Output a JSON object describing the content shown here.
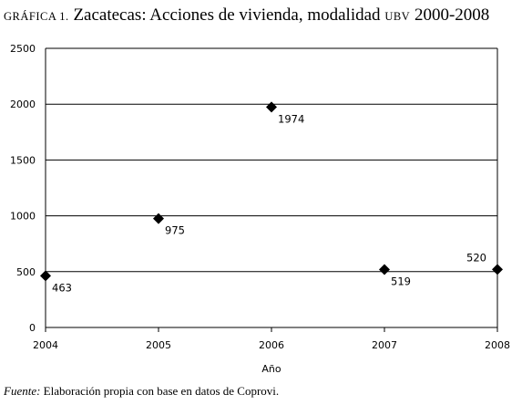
{
  "title": {
    "prefix": "GRÁFICA 1.",
    "main": "Zacatecas: Acciones de vivienda, modalidad",
    "abbr": "UBV",
    "years": "2000-2008"
  },
  "source": {
    "label": "Fuente:",
    "text": "Elaboración propia con base en datos de Coprovi."
  },
  "chart_data": {
    "type": "scatter",
    "title": "Zacatecas: Acciones de vivienda, modalidad UBV 2000-2008",
    "xlabel": "Año",
    "ylabel": "",
    "x": [
      2004,
      2005,
      2006,
      2007,
      2008
    ],
    "y": [
      463,
      975,
      1974,
      519,
      520
    ],
    "data_labels": [
      "463",
      "975",
      "1974",
      "519",
      "520"
    ],
    "xlim": [
      2004,
      2008
    ],
    "ylim": [
      0,
      2500
    ],
    "x_ticks": [
      "2004",
      "2005",
      "2006",
      "2007",
      "2008"
    ],
    "y_ticks": [
      "0",
      "500",
      "1000",
      "1500",
      "2000",
      "2500"
    ],
    "grid": "horizontal",
    "marker": "diamond",
    "marker_color": "#000000",
    "legend": "none"
  }
}
